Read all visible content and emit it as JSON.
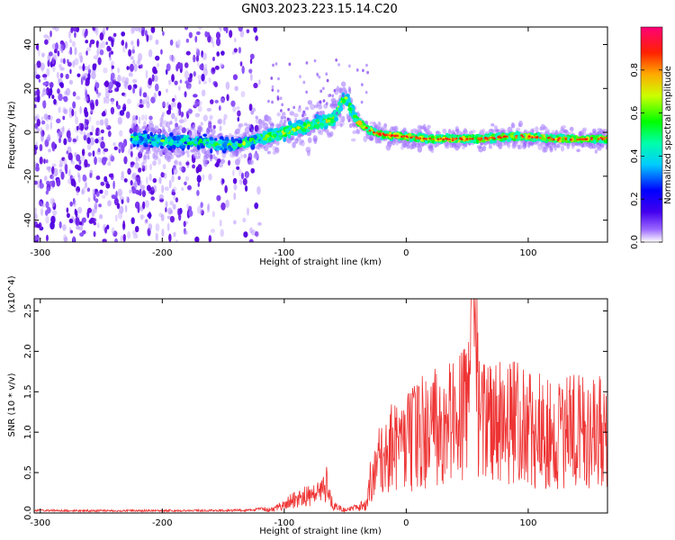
{
  "figure": {
    "title": "GN03.2023.223.15.14.C20"
  },
  "chart_data": [
    {
      "type": "heatmap",
      "name": "spectrogram",
      "xlabel": "Height of straight line (km)",
      "ylabel": "Frequency (Hz)",
      "xlim": [
        -305,
        165
      ],
      "ylim": [
        -50,
        48
      ],
      "x_ticks": [
        -300,
        -200,
        -100,
        0,
        100
      ],
      "y_ticks": [
        -40,
        -20,
        0,
        20,
        40
      ],
      "grid": false,
      "colorbar": {
        "label": "Normalized spectral amplitude",
        "range": [
          0,
          1
        ],
        "ticks": [
          0.0,
          0.2,
          0.4,
          0.6,
          0.8
        ],
        "colormap": [
          "#ffffff",
          "#6600cc",
          "#0000ff",
          "#00ffff",
          "#00ff00",
          "#ffff00",
          "#ff8800",
          "#ff0000",
          "#ff0077"
        ]
      },
      "ridge": {
        "x": [
          -220,
          -200,
          -180,
          -160,
          -140,
          -120,
          -100,
          -80,
          -60,
          -50,
          -40,
          -30,
          -20,
          0,
          20,
          40,
          60,
          80,
          100,
          120,
          140,
          160
        ],
        "y": [
          -3,
          -4,
          -4,
          -5,
          -6,
          -3,
          0,
          3,
          6,
          16,
          5,
          1,
          -1,
          -2,
          -3,
          -3,
          -3,
          -2,
          -2,
          -3,
          -3,
          -3
        ]
      }
    },
    {
      "type": "line",
      "name": "snr",
      "xlabel": "Height of straight line (km)",
      "ylabel": "SNR (10 * v/v)",
      "y_multiplier": "(x10^4)",
      "xlim": [
        -305,
        165
      ],
      "ylim": [
        0,
        26500
      ],
      "x_ticks": [
        -300,
        -200,
        -100,
        0,
        100
      ],
      "y_ticks": [
        0,
        5000,
        10000,
        15000,
        20000,
        25000
      ],
      "y_tick_labels": [
        "0.0",
        "0.5",
        "1.0",
        "1.5",
        "2.0",
        "2.5"
      ],
      "line_color": "#ee3333",
      "grid": false,
      "series": [
        {
          "x": [
            -305,
            -240,
            -180,
            -130,
            -110,
            -100,
            -90,
            -80,
            -70,
            -65,
            -60,
            -50,
            -40,
            -32,
            -30,
            -20,
            -10,
            0,
            10,
            20,
            30,
            40,
            50,
            55,
            60,
            70,
            80,
            90,
            100,
            110,
            120,
            130,
            140,
            150,
            160,
            165
          ],
          "y": [
            300,
            300,
            300,
            350,
            600,
            1500,
            2500,
            3000,
            3500,
            5500,
            1200,
            500,
            1000,
            1500,
            4500,
            8000,
            9500,
            10000,
            11000,
            12000,
            13500,
            13000,
            14000,
            26500,
            13000,
            12500,
            13000,
            12500,
            12000,
            11500,
            11000,
            11500,
            11500,
            11000,
            11500,
            10500
          ]
        }
      ]
    }
  ]
}
